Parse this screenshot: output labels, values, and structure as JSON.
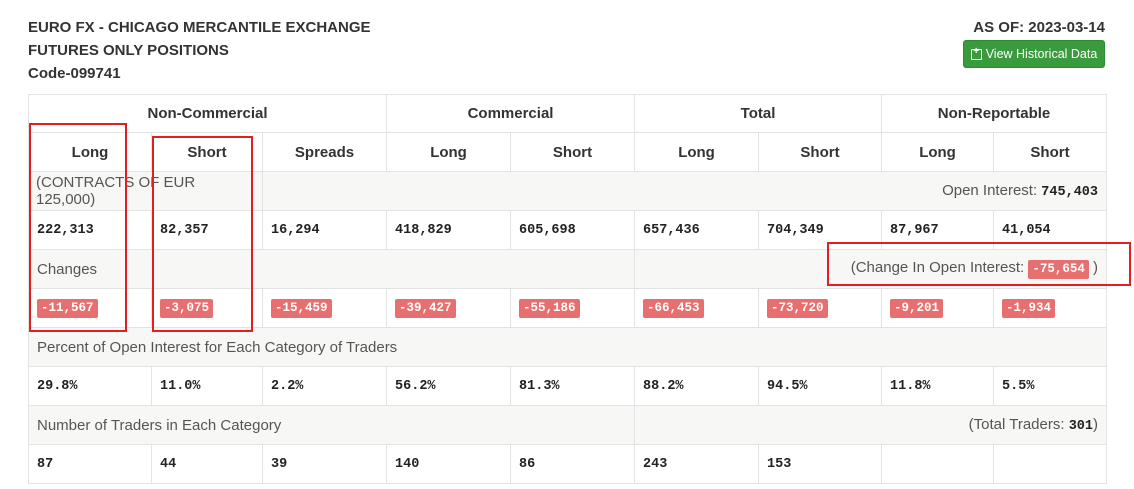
{
  "header": {
    "line1": "EURO FX - CHICAGO MERCANTILE EXCHANGE",
    "line2": "FUTURES ONLY POSITIONS",
    "line3": "Code-099741",
    "as_of": "AS OF: 2023-03-14",
    "history_button": "View Historical Data"
  },
  "groups": [
    "Non-Commercial",
    "Commercial",
    "Total",
    "Non-Reportable"
  ],
  "columns": [
    "Long",
    "Short",
    "Spreads",
    "Long",
    "Short",
    "Long",
    "Short",
    "Long",
    "Short"
  ],
  "contracts_note": "(CONTRACTS OF EUR 125,000)",
  "open_interest_label": "Open Interest: ",
  "open_interest_value": "745,403",
  "positions": [
    "222,313",
    "82,357",
    "16,294",
    "418,829",
    "605,698",
    "657,436",
    "704,349",
    "87,967",
    "41,054"
  ],
  "changes_label": "Changes",
  "change_oi_prefix": "(Change In Open Interest: ",
  "change_oi_value": "-75,654",
  "change_oi_suffix": " )",
  "changes": [
    "-11,567",
    "-3,075",
    "-15,459",
    "-39,427",
    "-55,186",
    "-66,453",
    "-73,720",
    "-9,201",
    "-1,934"
  ],
  "percent_label": "Percent of Open Interest for Each Category of Traders",
  "percents": [
    "29.8%",
    "11.0%",
    "2.2%",
    "56.2%",
    "81.3%",
    "88.2%",
    "94.5%",
    "11.8%",
    "5.5%"
  ],
  "traders_label": "Number of Traders in Each Category",
  "total_traders_prefix": "(Total Traders: ",
  "total_traders_value": "301",
  "total_traders_suffix": ")",
  "traders": [
    "87",
    "44",
    "39",
    "140",
    "86",
    "243",
    "153",
    "",
    ""
  ],
  "colors": {
    "button": "#3a9b3e",
    "badge": "#e86f6f",
    "highlight": "#e02020"
  }
}
